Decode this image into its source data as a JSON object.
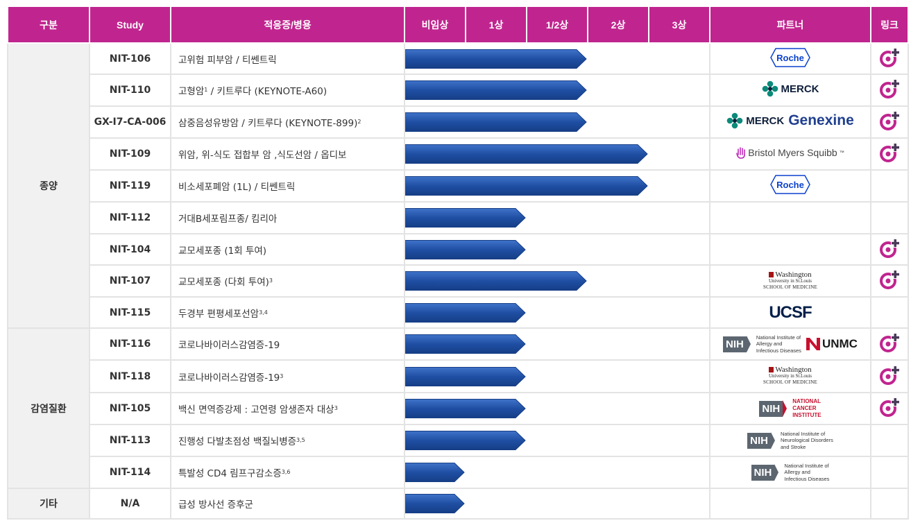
{
  "headers": {
    "category": "구분",
    "study": "Study",
    "indication": "적응증/병용",
    "preclinical": "비임상",
    "phase1": "1상",
    "phase1_2": "1/2상",
    "phase2": "2상",
    "phase3": "3상",
    "partner": "파트너",
    "link": "링크"
  },
  "categories": {
    "oncology": "종양",
    "infectious": "감염질환",
    "other": "기타"
  },
  "colors": {
    "header_bg": "#c0258f",
    "bar": "#1f4fa3",
    "link_icon": "#c0258f"
  },
  "rows": [
    {
      "study": "NIT-106",
      "indication": "고위험 피부암 / 티쎈트릭",
      "sup": "",
      "progress": "1/2상",
      "partner": "roche-logo",
      "link": true
    },
    {
      "study": "NIT-110",
      "indication": "고형암",
      "sup_mid": "1",
      "indication_rest": " / 키트루다 (KEYNOTE-A60)",
      "progress": "1/2상",
      "partner": "merck-logo",
      "link": true
    },
    {
      "study": "GX-I7-CA-006",
      "indication": "삼중음성유방암 / 키트루다 (KEYNOTE-899)",
      "sup": "2",
      "progress": "1/2상",
      "partner": "merck-genexine-logo",
      "link": true
    },
    {
      "study": "NIT-109",
      "indication": "위암, 위-식도 접합부 암 ,식도선암 / 옵디보",
      "sup": "",
      "progress": "2상",
      "partner": "bms-logo",
      "link": true
    },
    {
      "study": "NIT-119",
      "indication": "비소세포폐암 (1L) / 티쎈트릭",
      "sup": "",
      "progress": "2상",
      "partner": "roche-logo",
      "link": false
    },
    {
      "study": "NIT-112",
      "indication": "거대B세포림프종/ 킴리아",
      "sup": "",
      "progress": "1상",
      "partner": "",
      "link": false
    },
    {
      "study": "NIT-104",
      "indication": "교모세포종 (1회 투여)",
      "sup": "",
      "progress": "1상",
      "partner": "",
      "link": true
    },
    {
      "study": "NIT-107",
      "indication": "교모세포종 (다회 투여)",
      "sup": "3",
      "progress": "1/2상",
      "partner": "wustl-logo",
      "link": true
    },
    {
      "study": "NIT-115",
      "indication": "두경부 편평세포선암",
      "sup": "3,4",
      "progress": "1상",
      "partner": "ucsf-logo",
      "link": false
    },
    {
      "study": "NIT-116",
      "indication": "코로나바이러스감염증-19",
      "sup": "",
      "progress": "1상",
      "partner": "nih-niaid-unmc-logo",
      "link": true
    },
    {
      "study": "NIT-118",
      "indication": "코로나바이러스감염증-19",
      "sup": "3",
      "progress": "1상",
      "partner": "wustl-logo",
      "link": true
    },
    {
      "study": "NIT-105",
      "indication": "백신 면역증강제 : 고연령 암생존자 대상",
      "sup": "3",
      "progress": "1상",
      "partner": "nih-nci-logo",
      "link": true
    },
    {
      "study": "NIT-113",
      "indication": "진행성 다발초점성 백질뇌병증",
      "sup": "3,5",
      "progress": "1상",
      "partner": "nih-ninds-logo",
      "link": false
    },
    {
      "study": "NIT-114",
      "indication": "특발성 CD4 림프구감소증",
      "sup": "3,6",
      "progress": "비임상",
      "partner": "nih-niaid-logo",
      "link": false
    },
    {
      "study": "N/A",
      "indication": "급성 방사선 증후군",
      "sup": "",
      "progress": "비임상",
      "partner": "",
      "link": false
    }
  ],
  "logos": {
    "roche": "Roche",
    "merck": "MERCK",
    "genexine": "Genexine",
    "bms": "Bristol Myers Squibb",
    "bms_tm": "™",
    "wustl_1": "Washington",
    "wustl_2": "University in St.Louis",
    "wustl_3": "SCHOOL OF MEDICINE",
    "ucsf": "UCSF",
    "nih": "NIH",
    "niaid": [
      "National Institute of",
      "Allergy and",
      "Infectious Diseases"
    ],
    "unmc": "UNMC",
    "nci": [
      "NATIONAL",
      "CANCER",
      "INSTITUTE"
    ],
    "ninds": [
      "National Institute of",
      "Neurological Disorders",
      "and Stroke"
    ]
  }
}
